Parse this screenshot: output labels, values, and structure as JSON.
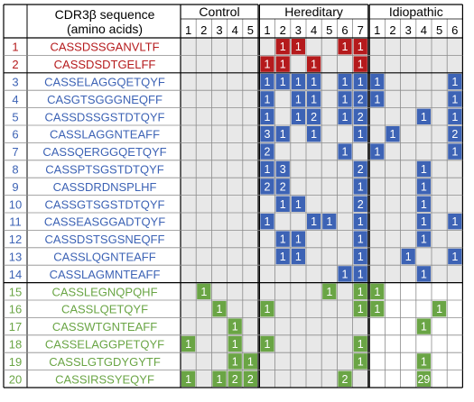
{
  "header": {
    "title_line1": "CDR3β sequence",
    "title_line2": "(amino acids)"
  },
  "groups": [
    {
      "name": "Control",
      "columns": [
        "1",
        "2",
        "3",
        "4",
        "5"
      ]
    },
    {
      "name": "Hereditary",
      "columns": [
        "1",
        "2",
        "3",
        "4",
        "5",
        "6",
        "7"
      ]
    },
    {
      "name": "Idiopathic",
      "columns": [
        "1",
        "2",
        "3",
        "4",
        "5",
        "6"
      ]
    }
  ],
  "colors": {
    "red": "#b51a1c",
    "blue": "#3d63b5",
    "green": "#6aa545",
    "gray_cell": "#e8e8e8",
    "white_cell": "#ffffff",
    "grid": "#8c8c8c"
  },
  "chart_data": {
    "type": "heatmap",
    "row_groups": {
      "red": [
        1,
        2
      ],
      "blue": [
        3,
        14
      ],
      "green": [
        15,
        20
      ]
    },
    "rows": [
      {
        "index": "1",
        "sequence": "CASSDSSGANVLTF",
        "color": "red",
        "values": [
          null,
          null,
          null,
          null,
          null,
          null,
          1,
          1,
          null,
          null,
          1,
          1,
          null,
          null,
          null,
          null,
          null,
          null
        ]
      },
      {
        "index": "2",
        "sequence": "CASSDSDTGELFF",
        "color": "red",
        "values": [
          null,
          null,
          null,
          null,
          null,
          1,
          1,
          null,
          1,
          null,
          null,
          1,
          null,
          null,
          null,
          null,
          null,
          null
        ]
      },
      {
        "index": "3",
        "sequence": "CASSELAGGQETQYF",
        "color": "blue",
        "values": [
          null,
          null,
          null,
          null,
          null,
          1,
          1,
          1,
          1,
          null,
          1,
          1,
          1,
          null,
          null,
          null,
          null,
          1
        ]
      },
      {
        "index": "4",
        "sequence": "CASGTSGGGNEQFF",
        "color": "blue",
        "values": [
          null,
          null,
          null,
          null,
          null,
          1,
          null,
          1,
          1,
          null,
          1,
          2,
          1,
          null,
          null,
          null,
          null,
          1
        ]
      },
      {
        "index": "5",
        "sequence": "CASSDSSGSTDTQYF",
        "color": "blue",
        "values": [
          null,
          null,
          null,
          null,
          null,
          1,
          null,
          1,
          2,
          null,
          1,
          2,
          null,
          null,
          null,
          1,
          null,
          1
        ]
      },
      {
        "index": "6",
        "sequence": "CASSLAGGNTEAFF",
        "color": "blue",
        "values": [
          null,
          null,
          null,
          null,
          null,
          3,
          1,
          null,
          1,
          null,
          null,
          1,
          null,
          1,
          null,
          null,
          null,
          2
        ]
      },
      {
        "index": "7",
        "sequence": "CASSQERGGQETQYF",
        "color": "blue",
        "values": [
          null,
          null,
          null,
          null,
          null,
          2,
          null,
          null,
          null,
          null,
          1,
          null,
          1,
          null,
          null,
          null,
          null,
          1
        ]
      },
      {
        "index": "8",
        "sequence": "CASSPTSGSTDTQYF",
        "color": "blue",
        "values": [
          null,
          null,
          null,
          null,
          null,
          1,
          3,
          null,
          null,
          null,
          null,
          2,
          null,
          null,
          null,
          1,
          null,
          null
        ]
      },
      {
        "index": "9",
        "sequence": "CASSDRDNSPLHF",
        "color": "blue",
        "values": [
          null,
          null,
          null,
          null,
          null,
          2,
          2,
          null,
          null,
          null,
          null,
          1,
          null,
          null,
          null,
          1,
          null,
          null
        ]
      },
      {
        "index": "10",
        "sequence": "CASSGTSGSTDTQYF",
        "color": "blue",
        "values": [
          null,
          null,
          null,
          null,
          null,
          null,
          1,
          1,
          null,
          null,
          null,
          2,
          null,
          null,
          null,
          1,
          null,
          null
        ]
      },
      {
        "index": "11",
        "sequence": "CASSEASGGADTQYF",
        "color": "blue",
        "values": [
          null,
          null,
          null,
          null,
          null,
          1,
          null,
          null,
          1,
          1,
          null,
          1,
          null,
          null,
          null,
          1,
          null,
          1
        ]
      },
      {
        "index": "12",
        "sequence": "CASSDSTSGSNEQFF",
        "color": "blue",
        "values": [
          null,
          null,
          null,
          null,
          null,
          null,
          1,
          1,
          null,
          null,
          null,
          1,
          null,
          null,
          null,
          1,
          null,
          null
        ]
      },
      {
        "index": "13",
        "sequence": "CASSLQGNTEAFF",
        "color": "blue",
        "values": [
          null,
          null,
          null,
          null,
          null,
          null,
          1,
          1,
          null,
          null,
          null,
          1,
          null,
          null,
          1,
          null,
          null,
          1
        ]
      },
      {
        "index": "14",
        "sequence": "CASSLAGMNTEAFF",
        "color": "blue",
        "values": [
          null,
          null,
          null,
          null,
          null,
          null,
          null,
          null,
          null,
          null,
          1,
          1,
          null,
          null,
          null,
          1,
          null,
          null
        ]
      },
      {
        "index": "15",
        "sequence": "CASSLEGNQPQHF",
        "color": "green",
        "values": [
          null,
          1,
          null,
          null,
          null,
          null,
          null,
          null,
          null,
          1,
          null,
          1,
          1,
          null,
          null,
          null,
          null,
          null
        ]
      },
      {
        "index": "16",
        "sequence": "CASSLQETQYF",
        "color": "green",
        "values": [
          null,
          null,
          1,
          null,
          null,
          1,
          null,
          null,
          null,
          null,
          null,
          1,
          1,
          null,
          null,
          null,
          1,
          null
        ]
      },
      {
        "index": "17",
        "sequence": "CASSWTGNTEAFF",
        "color": "green",
        "values": [
          null,
          null,
          null,
          1,
          null,
          null,
          null,
          null,
          null,
          null,
          null,
          null,
          null,
          null,
          null,
          1,
          null,
          null
        ]
      },
      {
        "index": "18",
        "sequence": "CASSELAGGPETQYF",
        "color": "green",
        "values": [
          1,
          null,
          null,
          1,
          null,
          1,
          null,
          null,
          null,
          null,
          null,
          1,
          null,
          null,
          null,
          null,
          null,
          null
        ]
      },
      {
        "index": "19",
        "sequence": "CASSLGTGDYGYTF",
        "color": "green",
        "values": [
          null,
          null,
          null,
          1,
          1,
          null,
          null,
          null,
          null,
          null,
          null,
          1,
          null,
          null,
          null,
          1,
          null,
          null
        ]
      },
      {
        "index": "20",
        "sequence": "CASSIRSSYEQYF",
        "color": "green",
        "values": [
          1,
          null,
          1,
          2,
          2,
          null,
          null,
          null,
          null,
          null,
          2,
          null,
          null,
          null,
          null,
          29,
          null,
          null
        ]
      }
    ]
  }
}
